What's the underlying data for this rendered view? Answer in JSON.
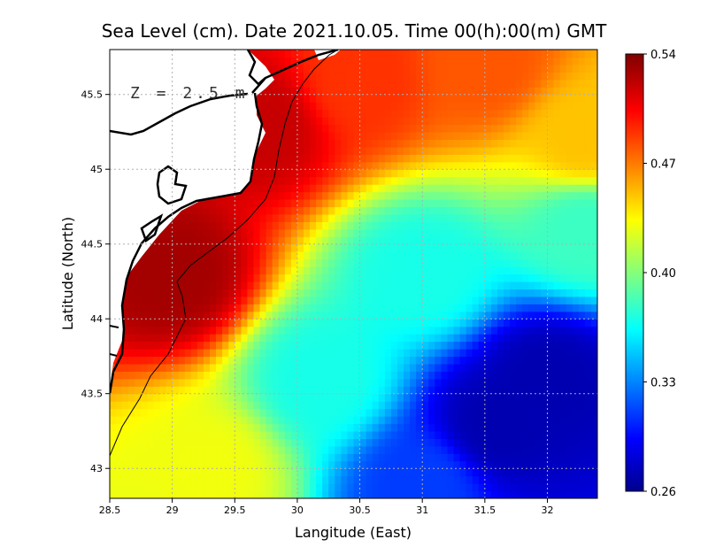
{
  "chart_data": {
    "type": "heatmap",
    "title": "Sea Level (cm). Date 2021.10.05. Time 00(h):00(m) GMT",
    "xlabel": "Langitude (East)",
    "ylabel": "Latitude (North)",
    "annotation": "Z = 2.5 m",
    "xlim": [
      28.5,
      32.4
    ],
    "ylim": [
      42.8,
      45.8
    ],
    "x_ticks": [
      "28.5",
      "29",
      "29.5",
      "30",
      "30.5",
      "31",
      "31.5",
      "32"
    ],
    "y_ticks": [
      "43",
      "43.5",
      "44",
      "44.5",
      "45",
      "45.5"
    ],
    "grid": true,
    "colorbar": {
      "min": 0.26,
      "max": 0.54,
      "tick_labels": [
        "0.54",
        "0.47",
        "0.40",
        "0.33",
        "0.26"
      ],
      "colormap": "jet",
      "colors": [
        "#00008f",
        "#0000ff",
        "#00ffff",
        "#ffff00",
        "#ff0000",
        "#800000"
      ]
    },
    "field_samples": [
      {
        "lon": 29.0,
        "lat": 44.3,
        "value": 0.53
      },
      {
        "lon": 29.7,
        "lat": 45.3,
        "value": 0.52
      },
      {
        "lon": 30.5,
        "lat": 45.6,
        "value": 0.49
      },
      {
        "lon": 31.5,
        "lat": 45.7,
        "value": 0.48
      },
      {
        "lon": 32.3,
        "lat": 45.2,
        "value": 0.45
      },
      {
        "lon": 32.3,
        "lat": 44.6,
        "value": 0.38
      },
      {
        "lon": 31.0,
        "lat": 44.3,
        "value": 0.37
      },
      {
        "lon": 30.2,
        "lat": 43.6,
        "value": 0.37
      },
      {
        "lon": 29.3,
        "lat": 43.0,
        "value": 0.43
      },
      {
        "lon": 31.6,
        "lat": 43.3,
        "value": 0.27
      },
      {
        "lon": 32.0,
        "lat": 43.6,
        "value": 0.27
      },
      {
        "lon": 31.0,
        "lat": 42.9,
        "value": 0.31
      }
    ]
  }
}
